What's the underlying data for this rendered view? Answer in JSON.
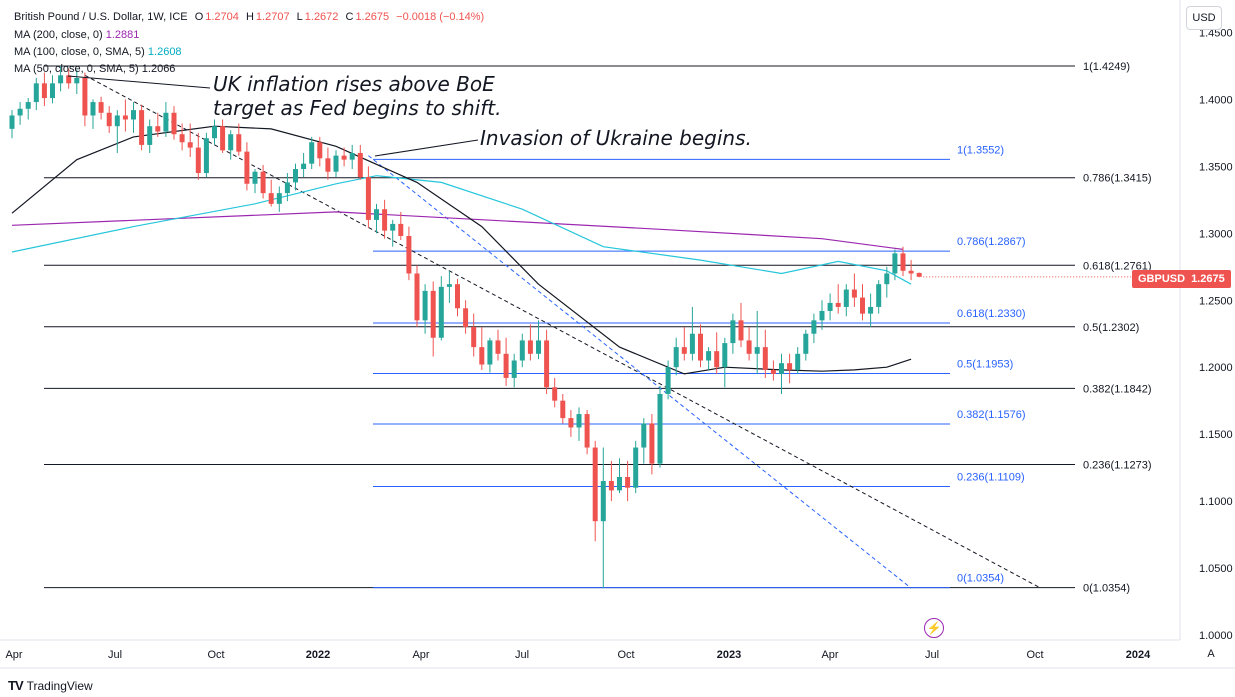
{
  "legend": {
    "title": "British Pound / U.S. Dollar, 1W, ICE",
    "ohlc": [
      {
        "label": "O",
        "value": "1.2704"
      },
      {
        "label": "H",
        "value": "1.2707"
      },
      {
        "label": "L",
        "value": "1.2672"
      },
      {
        "label": "C",
        "value": "1.2675"
      }
    ],
    "change": "−0.0018 (−0.14%)",
    "ma200": {
      "label": "MA (200, close, 0)",
      "value": "1.2881",
      "color": "#9c27b0"
    },
    "ma100": {
      "label": "MA (100, close, 0, SMA, 5)",
      "value": "1.2608",
      "color": "#26c6da"
    },
    "ma50": {
      "label": "MA (50, close, 0, SMA, 5)",
      "value": "1.2066",
      "color": "#131722"
    }
  },
  "currency": "USD",
  "price_tag": {
    "symbol": "GBPUSD",
    "value": "1.2675",
    "color": "#ef5350"
  },
  "auto_label": "A",
  "brand": "TradingView",
  "annotations": [
    {
      "id": "boe",
      "line1": "UK inflation rises above BoE",
      "line2": "target as Fed begins to shift."
    },
    {
      "id": "ukraine",
      "line1": "Invasion of Ukraine begins."
    }
  ],
  "chart_data": {
    "type": "candlestick",
    "y_axis": {
      "min": 1.0,
      "max": 1.45,
      "ticks": [
        "1.0000",
        "1.0500",
        "1.1000",
        "1.1500",
        "1.2000",
        "1.2500",
        "1.3000",
        "1.3500",
        "1.4000",
        "1.4500"
      ]
    },
    "x_axis": {
      "labels": [
        "Apr",
        "Jul",
        "Oct",
        "2022",
        "Apr",
        "Jul",
        "Oct",
        "2023",
        "Apr",
        "Jul",
        "Oct",
        "2024"
      ]
    },
    "up_color": "#26a69a",
    "down_color": "#ef5350",
    "candles": [
      [
        1.378,
        1.392,
        1.371,
        1.388
      ],
      [
        1.388,
        1.398,
        1.381,
        1.393
      ],
      [
        1.393,
        1.401,
        1.385,
        1.398
      ],
      [
        1.398,
        1.416,
        1.392,
        1.412
      ],
      [
        1.412,
        1.42,
        1.395,
        1.401
      ],
      [
        1.401,
        1.418,
        1.397,
        1.412
      ],
      [
        1.412,
        1.425,
        1.406,
        1.418
      ],
      [
        1.418,
        1.423,
        1.408,
        1.412
      ],
      [
        1.412,
        1.422,
        1.404,
        1.416
      ],
      [
        1.416,
        1.42,
        1.38,
        1.388
      ],
      [
        1.388,
        1.4,
        1.378,
        1.398
      ],
      [
        1.398,
        1.402,
        1.385,
        1.39
      ],
      [
        1.39,
        1.395,
        1.375,
        1.38
      ],
      [
        1.38,
        1.392,
        1.36,
        1.388
      ],
      [
        1.388,
        1.4,
        1.376,
        1.385
      ],
      [
        1.385,
        1.398,
        1.375,
        1.392
      ],
      [
        1.392,
        1.396,
        1.362,
        1.366
      ],
      [
        1.366,
        1.385,
        1.36,
        1.38
      ],
      [
        1.38,
        1.39,
        1.372,
        1.376
      ],
      [
        1.376,
        1.398,
        1.372,
        1.39
      ],
      [
        1.39,
        1.395,
        1.37,
        1.374
      ],
      [
        1.374,
        1.382,
        1.362,
        1.368
      ],
      [
        1.368,
        1.382,
        1.357,
        1.364
      ],
      [
        1.364,
        1.375,
        1.34,
        1.345
      ],
      [
        1.345,
        1.375,
        1.342,
        1.371
      ],
      [
        1.371,
        1.385,
        1.366,
        1.38
      ],
      [
        1.38,
        1.385,
        1.36,
        1.362
      ],
      [
        1.362,
        1.377,
        1.355,
        1.374
      ],
      [
        1.374,
        1.382,
        1.358,
        1.361
      ],
      [
        1.361,
        1.368,
        1.332,
        1.337
      ],
      [
        1.337,
        1.348,
        1.33,
        1.346
      ],
      [
        1.346,
        1.351,
        1.326,
        1.33
      ],
      [
        1.33,
        1.34,
        1.32,
        1.322
      ],
      [
        1.322,
        1.335,
        1.316,
        1.33
      ],
      [
        1.33,
        1.345,
        1.324,
        1.338
      ],
      [
        1.338,
        1.352,
        1.332,
        1.348
      ],
      [
        1.348,
        1.36,
        1.342,
        1.352
      ],
      [
        1.352,
        1.372,
        1.348,
        1.368
      ],
      [
        1.368,
        1.372,
        1.35,
        1.356
      ],
      [
        1.356,
        1.364,
        1.34,
        1.346
      ],
      [
        1.346,
        1.362,
        1.342,
        1.358
      ],
      [
        1.358,
        1.364,
        1.35,
        1.355
      ],
      [
        1.355,
        1.366,
        1.348,
        1.36
      ],
      [
        1.36,
        1.366,
        1.34,
        1.342
      ],
      [
        1.342,
        1.35,
        1.304,
        1.31
      ],
      [
        1.31,
        1.322,
        1.3,
        1.318
      ],
      [
        1.318,
        1.325,
        1.296,
        1.302
      ],
      [
        1.302,
        1.31,
        1.29,
        1.307
      ],
      [
        1.307,
        1.316,
        1.295,
        1.298
      ],
      [
        1.298,
        1.305,
        1.265,
        1.27
      ],
      [
        1.27,
        1.276,
        1.23,
        1.235
      ],
      [
        1.235,
        1.262,
        1.225,
        1.257
      ],
      [
        1.257,
        1.264,
        1.208,
        1.222
      ],
      [
        1.222,
        1.268,
        1.22,
        1.26
      ],
      [
        1.26,
        1.272,
        1.248,
        1.262
      ],
      [
        1.262,
        1.266,
        1.238,
        1.244
      ],
      [
        1.244,
        1.25,
        1.225,
        1.23
      ],
      [
        1.23,
        1.24,
        1.208,
        1.215
      ],
      [
        1.215,
        1.23,
        1.198,
        1.202
      ],
      [
        1.202,
        1.222,
        1.196,
        1.22
      ],
      [
        1.22,
        1.228,
        1.205,
        1.21
      ],
      [
        1.21,
        1.222,
        1.186,
        1.192
      ],
      [
        1.192,
        1.21,
        1.185,
        1.205
      ],
      [
        1.205,
        1.225,
        1.2,
        1.22
      ],
      [
        1.22,
        1.232,
        1.205,
        1.21
      ],
      [
        1.21,
        1.235,
        1.206,
        1.22
      ],
      [
        1.22,
        1.228,
        1.18,
        1.185
      ],
      [
        1.185,
        1.192,
        1.17,
        1.175
      ],
      [
        1.175,
        1.18,
        1.158,
        1.162
      ],
      [
        1.162,
        1.168,
        1.148,
        1.155
      ],
      [
        1.155,
        1.17,
        1.145,
        1.165
      ],
      [
        1.165,
        1.168,
        1.135,
        1.14
      ],
      [
        1.14,
        1.145,
        1.07,
        1.085
      ],
      [
        1.085,
        1.14,
        1.035,
        1.115
      ],
      [
        1.115,
        1.13,
        1.1,
        1.108
      ],
      [
        1.108,
        1.132,
        1.106,
        1.118
      ],
      [
        1.118,
        1.13,
        1.1,
        1.11
      ],
      [
        1.11,
        1.145,
        1.106,
        1.14
      ],
      [
        1.14,
        1.162,
        1.128,
        1.158
      ],
      [
        1.158,
        1.165,
        1.12,
        1.128
      ],
      [
        1.128,
        1.186,
        1.125,
        1.18
      ],
      [
        1.18,
        1.205,
        1.176,
        1.2
      ],
      [
        1.2,
        1.222,
        1.194,
        1.215
      ],
      [
        1.215,
        1.23,
        1.205,
        1.21
      ],
      [
        1.21,
        1.245,
        1.205,
        1.225
      ],
      [
        1.225,
        1.232,
        1.2,
        1.205
      ],
      [
        1.205,
        1.215,
        1.198,
        1.212
      ],
      [
        1.212,
        1.226,
        1.195,
        1.2
      ],
      [
        1.2,
        1.222,
        1.185,
        1.218
      ],
      [
        1.218,
        1.24,
        1.21,
        1.235
      ],
      [
        1.235,
        1.248,
        1.215,
        1.22
      ],
      [
        1.22,
        1.23,
        1.205,
        1.21
      ],
      [
        1.21,
        1.242,
        1.195,
        1.215
      ],
      [
        1.215,
        1.228,
        1.192,
        1.198
      ],
      [
        1.198,
        1.205,
        1.19,
        1.195
      ],
      [
        1.195,
        1.21,
        1.18,
        1.203
      ],
      [
        1.203,
        1.21,
        1.188,
        1.198
      ],
      [
        1.198,
        1.215,
        1.195,
        1.21
      ],
      [
        1.21,
        1.228,
        1.205,
        1.225
      ],
      [
        1.225,
        1.24,
        1.218,
        1.235
      ],
      [
        1.235,
        1.25,
        1.228,
        1.242
      ],
      [
        1.242,
        1.255,
        1.235,
        1.248
      ],
      [
        1.248,
        1.262,
        1.24,
        1.245
      ],
      [
        1.245,
        1.262,
        1.238,
        1.258
      ],
      [
        1.258,
        1.27,
        1.245,
        1.252
      ],
      [
        1.252,
        1.262,
        1.235,
        1.24
      ],
      [
        1.24,
        1.255,
        1.23,
        1.245
      ],
      [
        1.245,
        1.265,
        1.24,
        1.262
      ],
      [
        1.262,
        1.275,
        1.252,
        1.27
      ],
      [
        1.27,
        1.288,
        1.265,
        1.285
      ],
      [
        1.285,
        1.29,
        1.268,
        1.272
      ],
      [
        1.272,
        1.28,
        1.265,
        1.27
      ],
      [
        1.2704,
        1.2707,
        1.2672,
        1.2675
      ]
    ],
    "ma200_points": [
      [
        0,
        1.306
      ],
      [
        40,
        1.316
      ],
      [
        80,
        1.303
      ],
      [
        100,
        1.296
      ],
      [
        110,
        1.288
      ]
    ],
    "ma100_points": [
      [
        0,
        1.286
      ],
      [
        15,
        1.305
      ],
      [
        30,
        1.322
      ],
      [
        40,
        1.337
      ],
      [
        45,
        1.343
      ],
      [
        53,
        1.338
      ],
      [
        63,
        1.318
      ],
      [
        73,
        1.29
      ],
      [
        85,
        1.28
      ],
      [
        95,
        1.27
      ],
      [
        102,
        1.279
      ],
      [
        108,
        1.272
      ],
      [
        111,
        1.262
      ]
    ],
    "ma50_points": [
      [
        0,
        1.315
      ],
      [
        8,
        1.355
      ],
      [
        15,
        1.372
      ],
      [
        25,
        1.38
      ],
      [
        32,
        1.378
      ],
      [
        40,
        1.365
      ],
      [
        50,
        1.338
      ],
      [
        58,
        1.305
      ],
      [
        65,
        1.262
      ],
      [
        75,
        1.215
      ],
      [
        83,
        1.195
      ],
      [
        88,
        1.2
      ],
      [
        95,
        1.198
      ],
      [
        100,
        1.197
      ],
      [
        104,
        1.198
      ],
      [
        108,
        1.2
      ],
      [
        111,
        1.206
      ]
    ],
    "fib_black": [
      {
        "label": "1(1.4249)",
        "value": 1.4249
      },
      {
        "label": "0.786(1.3415)",
        "value": 1.3415
      },
      {
        "label": "0.618(1.2761)",
        "value": 1.2761
      },
      {
        "label": "0.5(1.2302)",
        "value": 1.2302
      },
      {
        "label": "0.382(1.1842)",
        "value": 1.1842
      },
      {
        "label": "0.236(1.1273)",
        "value": 1.1273
      },
      {
        "label": "0(1.0354)",
        "value": 1.0354
      }
    ],
    "fib_blue": [
      {
        "label": "1(1.3552)",
        "value": 1.3552
      },
      {
        "label": "0.786(1.2867)",
        "value": 1.2867
      },
      {
        "label": "0.618(1.2330)",
        "value": 1.233
      },
      {
        "label": "0.5(1.1953)",
        "value": 1.1953
      },
      {
        "label": "0.382(1.1576)",
        "value": 1.1576
      },
      {
        "label": "0.236(1.1109)",
        "value": 1.1109
      },
      {
        "label": "0(1.0354)",
        "value": 1.0354
      }
    ],
    "trendlines": [
      {
        "style": "dashed",
        "color": "#131722",
        "from": [
          9,
          1.418
        ],
        "to": [
          127,
          1.035
        ]
      },
      {
        "style": "dashed",
        "color": "#2962ff",
        "from": [
          44,
          1.358
        ],
        "to": [
          111,
          1.035
        ]
      }
    ]
  }
}
